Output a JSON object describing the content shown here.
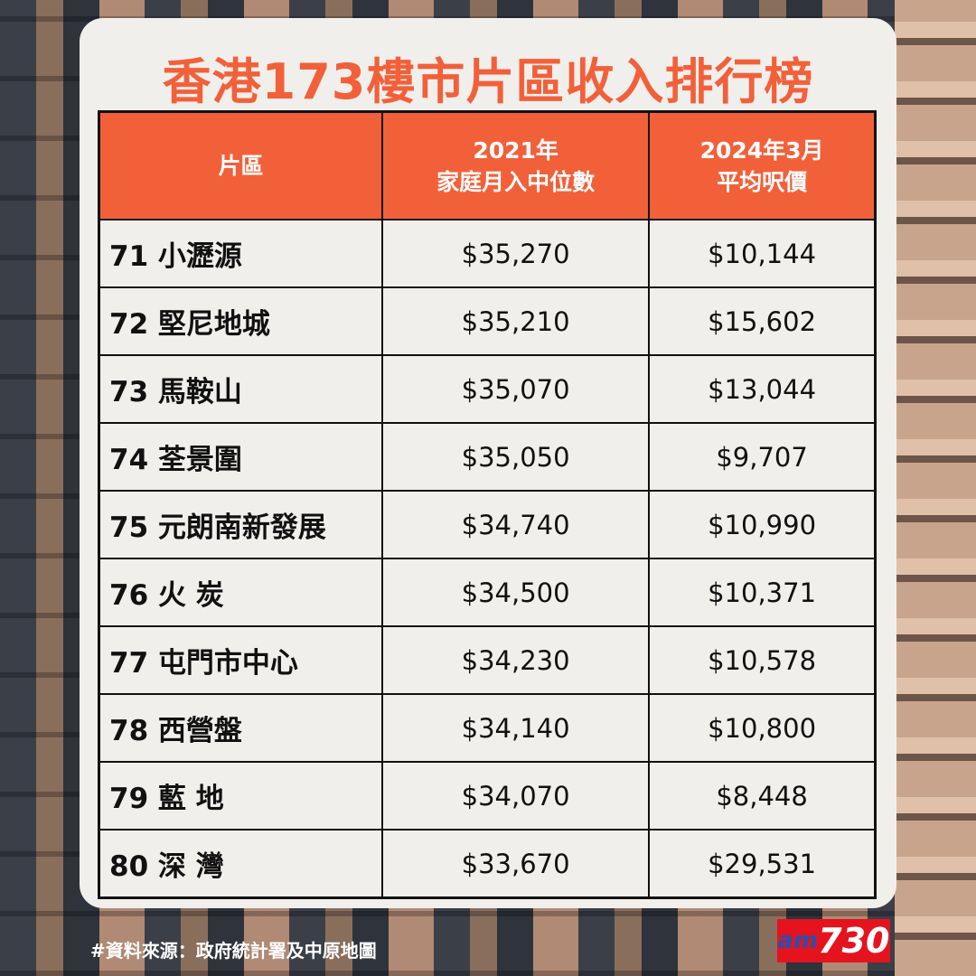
{
  "title": "香港173樓市片區收入排行榜",
  "table": {
    "headers": [
      {
        "line1": "片區",
        "line2": ""
      },
      {
        "line1": "2021年",
        "line2": "家庭月入中位數"
      },
      {
        "line1": "2024年3月",
        "line2": "平均呎價"
      }
    ],
    "rows": [
      {
        "area": "71 小瀝源",
        "income": "$35,270",
        "price": "$10,144"
      },
      {
        "area": "72 堅尼地城",
        "income": "$35,210",
        "price": "$15,602"
      },
      {
        "area": "73 馬鞍山",
        "income": "$35,070",
        "price": "$13,044"
      },
      {
        "area": "74 荃景圍",
        "income": "$35,050",
        "price": "$9,707"
      },
      {
        "area": "75 元朗南新發展",
        "income": "$34,740",
        "price": "$10,990"
      },
      {
        "area": "76 火 炭",
        "income": "$34,500",
        "price": "$10,371"
      },
      {
        "area": "77 屯門市中心",
        "income": "$34,230",
        "price": "$10,578"
      },
      {
        "area": "78 西營盤",
        "income": "$34,140",
        "price": "$10,800"
      },
      {
        "area": "79 藍 地",
        "income": "$34,070",
        "price": "$8,448"
      },
      {
        "area": "80 深 灣",
        "income": "$33,670",
        "price": "$29,531"
      }
    ]
  },
  "footer": {
    "source": "#資料來源：政府統計署及中原地圖"
  },
  "logo": {
    "am": "am",
    "num": "730"
  },
  "colors": {
    "accent": "#f2603a",
    "card": "#f1efec",
    "logo_red": "#e5131d"
  }
}
